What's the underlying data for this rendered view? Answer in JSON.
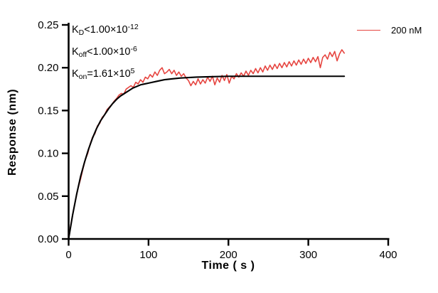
{
  "chart_data": {
    "type": "line",
    "title": "",
    "xlabel": "Time ( s )",
    "ylabel": "Response (nm)",
    "xlim": [
      0,
      400
    ],
    "ylim": [
      0,
      0.25
    ],
    "xticks": [
      0,
      100,
      200,
      300,
      400
    ],
    "xtick_labels": [
      "0",
      "100",
      "200",
      "300",
      "400"
    ],
    "yticks": [
      0,
      0.05,
      0.1,
      0.15,
      0.2,
      0.25
    ],
    "ytick_labels": [
      "0.00",
      "0.05",
      "0.10",
      "0.15",
      "0.20",
      "0.25"
    ],
    "grid": false,
    "legend_position": "top-right",
    "legend": [
      {
        "label": "200 nM",
        "color": "#e64540"
      }
    ],
    "annotation": {
      "lines": [
        {
          "base": "K",
          "sub": "D",
          "body": "<1.00×10",
          "exp": "-12"
        },
        {
          "base": "K",
          "sub": "off",
          "body": "<1.00×10",
          "exp": "-6"
        },
        {
          "base": "K",
          "sub": "on",
          "body": "=1.61×10",
          "exp": "5"
        }
      ]
    },
    "series": [
      {
        "name": "200 nM",
        "role": "data",
        "color": "#e64540",
        "width": 1.6,
        "start": 0,
        "step": 3,
        "values": [
          0.001,
          0.018,
          0.033,
          0.047,
          0.06,
          0.07,
          0.082,
          0.093,
          0.1,
          0.111,
          0.119,
          0.123,
          0.132,
          0.135,
          0.142,
          0.145,
          0.151,
          0.154,
          0.157,
          0.161,
          0.164,
          0.168,
          0.17,
          0.169,
          0.175,
          0.177,
          0.179,
          0.177,
          0.183,
          0.181,
          0.186,
          0.183,
          0.189,
          0.187,
          0.192,
          0.189,
          0.195,
          0.191,
          0.197,
          0.2,
          0.193,
          0.195,
          0.198,
          0.193,
          0.197,
          0.191,
          0.195,
          0.19,
          0.193,
          0.188,
          0.185,
          0.179,
          0.184,
          0.18,
          0.187,
          0.181,
          0.186,
          0.182,
          0.189,
          0.184,
          0.19,
          0.18,
          0.188,
          0.183,
          0.191,
          0.185,
          0.192,
          0.182,
          0.19,
          0.187,
          0.193,
          0.189,
          0.194,
          0.19,
          0.196,
          0.191,
          0.197,
          0.193,
          0.199,
          0.194,
          0.2,
          0.195,
          0.202,
          0.197,
          0.203,
          0.198,
          0.204,
          0.199,
          0.205,
          0.2,
          0.206,
          0.201,
          0.207,
          0.202,
          0.208,
          0.203,
          0.209,
          0.204,
          0.21,
          0.205,
          0.211,
          0.206,
          0.212,
          0.207,
          0.213,
          0.2,
          0.212,
          0.215,
          0.21,
          0.218,
          0.213,
          0.219,
          0.208,
          0.216,
          0.221,
          0.217
        ]
      },
      {
        "name": "fit",
        "role": "fit",
        "color": "#000000",
        "width": 2.1,
        "points": [
          [
            0,
            0
          ],
          [
            5,
            0.028
          ],
          [
            10,
            0.052
          ],
          [
            15,
            0.073
          ],
          [
            20,
            0.09
          ],
          [
            25,
            0.105
          ],
          [
            30,
            0.118
          ],
          [
            35,
            0.129
          ],
          [
            40,
            0.138
          ],
          [
            45,
            0.145
          ],
          [
            50,
            0.152
          ],
          [
            55,
            0.158
          ],
          [
            60,
            0.163
          ],
          [
            65,
            0.167
          ],
          [
            70,
            0.17
          ],
          [
            75,
            0.173
          ],
          [
            80,
            0.176
          ],
          [
            85,
            0.178
          ],
          [
            90,
            0.18
          ],
          [
            95,
            0.181
          ],
          [
            100,
            0.182
          ],
          [
            110,
            0.184
          ],
          [
            120,
            0.186
          ],
          [
            130,
            0.187
          ],
          [
            140,
            0.188
          ],
          [
            150,
            0.1885
          ],
          [
            160,
            0.189
          ],
          [
            180,
            0.1895
          ],
          [
            200,
            0.19
          ],
          [
            250,
            0.19
          ],
          [
            300,
            0.19
          ],
          [
            345,
            0.19
          ]
        ]
      }
    ]
  }
}
